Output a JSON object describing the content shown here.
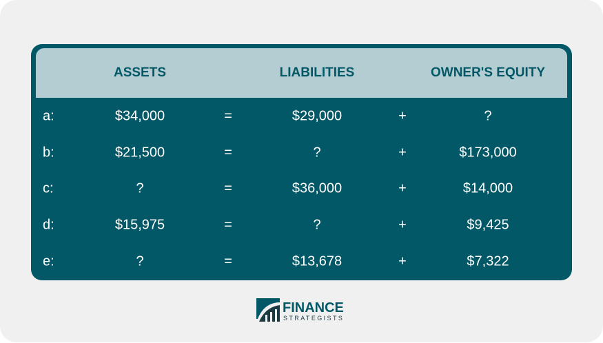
{
  "headers": {
    "assets": "ASSETS",
    "liabilities": "LIABILITIES",
    "equity": "OWNER'S EQUITY"
  },
  "rows": [
    {
      "label": "a:",
      "assets": "$34,000",
      "eq": "=",
      "liabilities": "$29,000",
      "plus": "+",
      "equity": "?"
    },
    {
      "label": "b:",
      "assets": "$21,500",
      "eq": "=",
      "liabilities": "?",
      "plus": "+",
      "equity": "$173,000"
    },
    {
      "label": "c:",
      "assets": "?",
      "eq": "=",
      "liabilities": "$36,000",
      "plus": "+",
      "equity": "$14,000"
    },
    {
      "label": "d:",
      "assets": "$15,975",
      "eq": "=",
      "liabilities": "?",
      "plus": "+",
      "equity": "$9,425"
    },
    {
      "label": "e:",
      "assets": "?",
      "eq": "=",
      "liabilities": "$13,678",
      "plus": "+",
      "equity": "$7,322"
    }
  ],
  "logo": {
    "line1": "FINANCE",
    "line2": "STRATEGISTS"
  },
  "colors": {
    "dark": "#025866",
    "header": "#b3cdd2",
    "background": "#f0f0f0"
  }
}
